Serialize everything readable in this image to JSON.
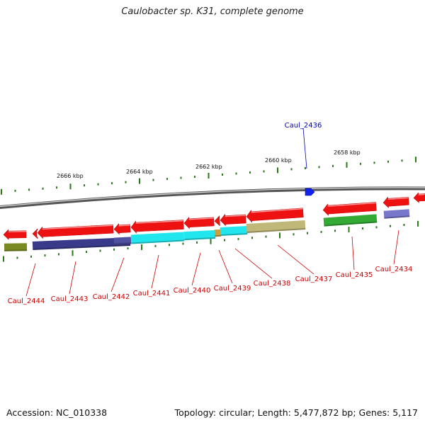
{
  "title": "Caulobacter sp. K31, complete genome",
  "footer": {
    "accession": "Accession: NC_010338",
    "topology": "Topology: circular; Length: 5,477,872 bp; Genes: 5,117"
  },
  "scale_labels": [
    "2666 kbp",
    "2664 kbp",
    "2662 kbp",
    "2660 kbp",
    "2658 kbp"
  ],
  "genes": {
    "top": [
      "Caul_2436"
    ],
    "bottom": [
      "Caul_2444",
      "Caul_2443",
      "Caul_2442",
      "Caul_2441",
      "Caul_2440",
      "Caul_2439",
      "Caul_2438",
      "Caul_2437",
      "Caul_2435",
      "Caul_2434"
    ]
  },
  "colors": {
    "arrow_red": "#ee1111",
    "backbone": "#888888",
    "tick_green": "#2a7a1a",
    "label_red": "#cc0000",
    "label_blue": "#0000bb",
    "marker_blue": "#1122ee",
    "navy": "#3a3a8a",
    "cyan": "#22e6ee",
    "khaki": "#c0b878",
    "green": "#33aa33",
    "olive": "#7a8a22",
    "lavender": "#7777cc",
    "gold": "#c8a040"
  }
}
